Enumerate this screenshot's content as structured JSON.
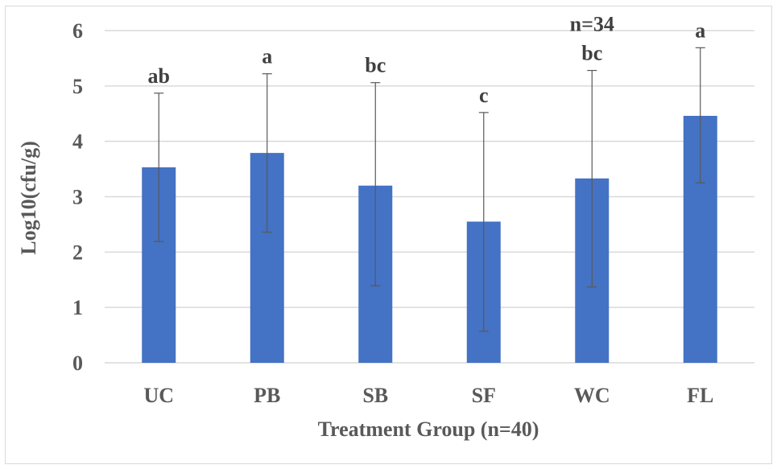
{
  "chart_data": {
    "type": "bar",
    "xlabel": "Treatment Group (n=40)",
    "ylabel": "Log10(cfu/g)",
    "ylim": [
      0,
      6
    ],
    "yticks": [
      0,
      1,
      2,
      3,
      4,
      5,
      6
    ],
    "grid": true,
    "categories": [
      "UC",
      "PB",
      "SB",
      "SF",
      "WC",
      "FL"
    ],
    "values": [
      3.53,
      3.79,
      3.2,
      2.55,
      3.33,
      4.46
    ],
    "error_upper": [
      4.87,
      5.22,
      5.06,
      4.52,
      5.28,
      5.69
    ],
    "error_lower": [
      2.19,
      2.36,
      1.39,
      0.57,
      1.37,
      3.25
    ],
    "significance_letters": [
      "ab",
      "a",
      "bc",
      "c",
      "bc",
      "a"
    ],
    "annotations": [
      {
        "category": "WC",
        "text": "n=34"
      }
    ],
    "colors": {
      "bar": "#4472c4",
      "gridline": "#d9d9d9",
      "error_bar": "#595959",
      "text": "#595959"
    }
  }
}
